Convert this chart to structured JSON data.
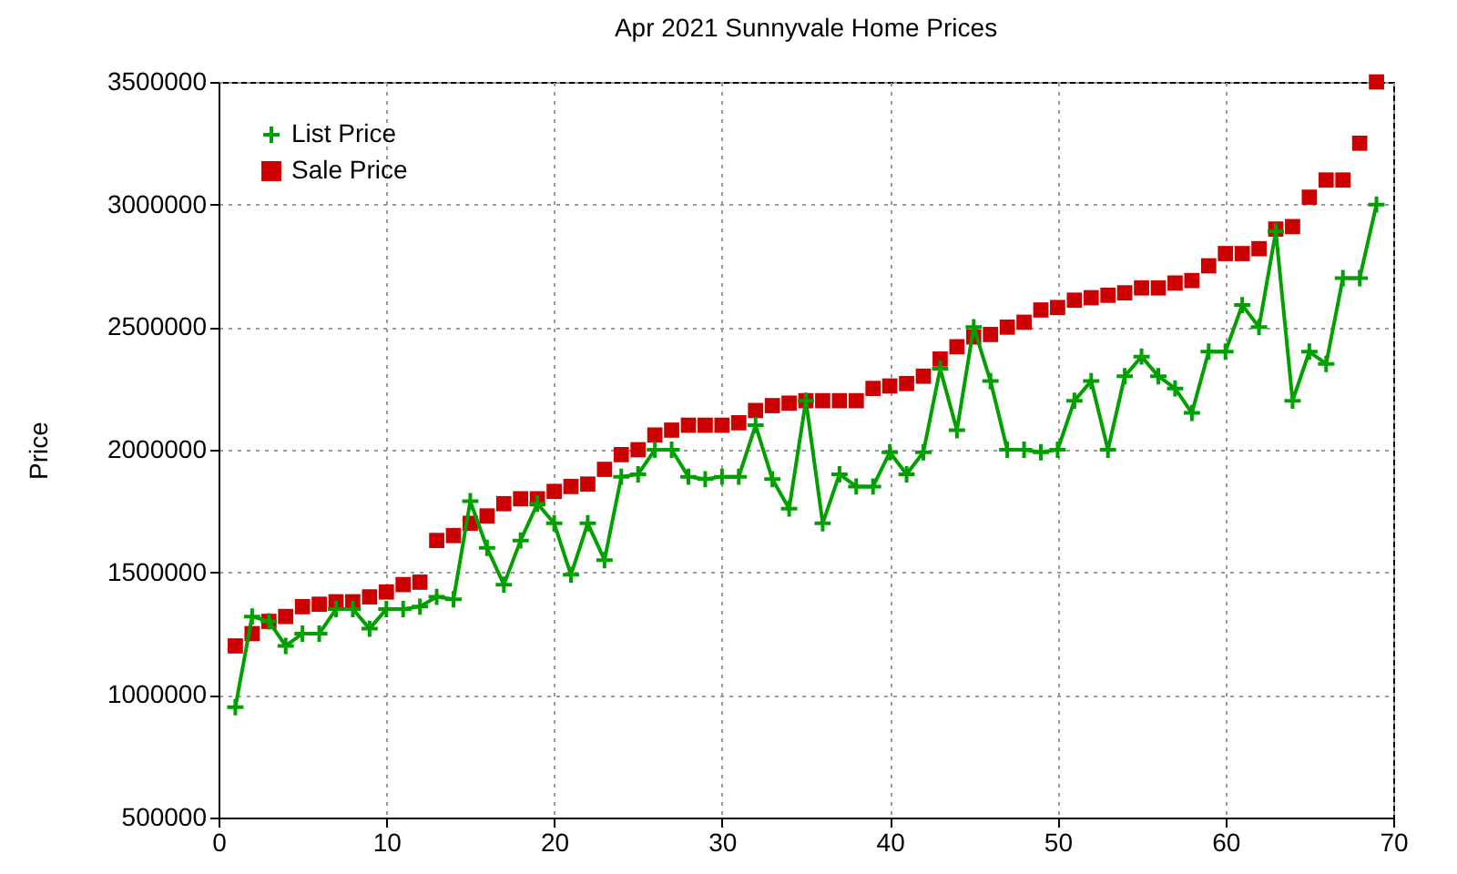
{
  "chart_data": {
    "type": "line",
    "title": "Apr 2021 Sunnyvale Home Prices",
    "ylabel": "Price",
    "x": [
      1,
      2,
      3,
      4,
      5,
      6,
      7,
      8,
      9,
      10,
      11,
      12,
      13,
      14,
      15,
      16,
      17,
      18,
      19,
      20,
      21,
      22,
      23,
      24,
      25,
      26,
      27,
      28,
      29,
      30,
      31,
      32,
      33,
      34,
      35,
      36,
      37,
      38,
      39,
      40,
      41,
      42,
      43,
      44,
      45,
      46,
      47,
      48,
      49,
      50,
      51,
      52,
      53,
      54,
      55,
      56,
      57,
      58,
      59,
      60,
      61,
      62,
      63,
      64,
      65,
      66,
      67,
      68,
      69
    ],
    "series": [
      {
        "name": "List Price",
        "marker": "cross",
        "color": "#00a000",
        "values": [
          950000,
          1320000,
          1300000,
          1200000,
          1250000,
          1250000,
          1350000,
          1350000,
          1270000,
          1350000,
          1350000,
          1360000,
          1400000,
          1390000,
          1790000,
          1600000,
          1450000,
          1630000,
          1780000,
          1700000,
          1490000,
          1700000,
          1550000,
          1890000,
          1900000,
          2000000,
          2000000,
          1890000,
          1880000,
          1890000,
          1890000,
          2100000,
          1880000,
          1760000,
          2200000,
          1700000,
          1900000,
          1850000,
          1850000,
          1990000,
          1900000,
          1990000,
          2330000,
          2080000,
          2500000,
          2280000,
          2000000,
          2000000,
          1990000,
          2000000,
          2200000,
          2280000,
          2000000,
          2300000,
          2380000,
          2300000,
          2250000,
          2150000,
          2400000,
          2400000,
          2590000,
          2500000,
          2890000,
          2200000,
          2400000,
          2350000,
          2700000,
          2700000,
          3000000
        ]
      },
      {
        "name": "Sale Price",
        "type": "scatter",
        "marker": "square",
        "color": "#cc0000",
        "values": [
          1200000,
          1250000,
          1300000,
          1320000,
          1360000,
          1370000,
          1380000,
          1380000,
          1400000,
          1420000,
          1450000,
          1460000,
          1630000,
          1650000,
          1700000,
          1730000,
          1780000,
          1800000,
          1800000,
          1830000,
          1850000,
          1860000,
          1920000,
          1980000,
          2000000,
          2060000,
          2080000,
          2100000,
          2100000,
          2100000,
          2110000,
          2160000,
          2180000,
          2190000,
          2200000,
          2200000,
          2200000,
          2200000,
          2250000,
          2260000,
          2270000,
          2300000,
          2370000,
          2420000,
          2460000,
          2470000,
          2500000,
          2520000,
          2570000,
          2580000,
          2610000,
          2620000,
          2630000,
          2640000,
          2660000,
          2660000,
          2680000,
          2690000,
          2750000,
          2800000,
          2800000,
          2820000,
          2900000,
          2910000,
          3030000,
          3100000,
          3100000,
          3250000,
          3500000
        ]
      }
    ],
    "xlim": [
      0,
      70
    ],
    "xticks": [
      0,
      10,
      20,
      30,
      40,
      50,
      60,
      70
    ],
    "ylim": [
      500000,
      3500000
    ],
    "yticks": [
      500000,
      1000000,
      1500000,
      2000000,
      2500000,
      3000000,
      3500000
    ],
    "grid": true,
    "legend": "top left"
  }
}
